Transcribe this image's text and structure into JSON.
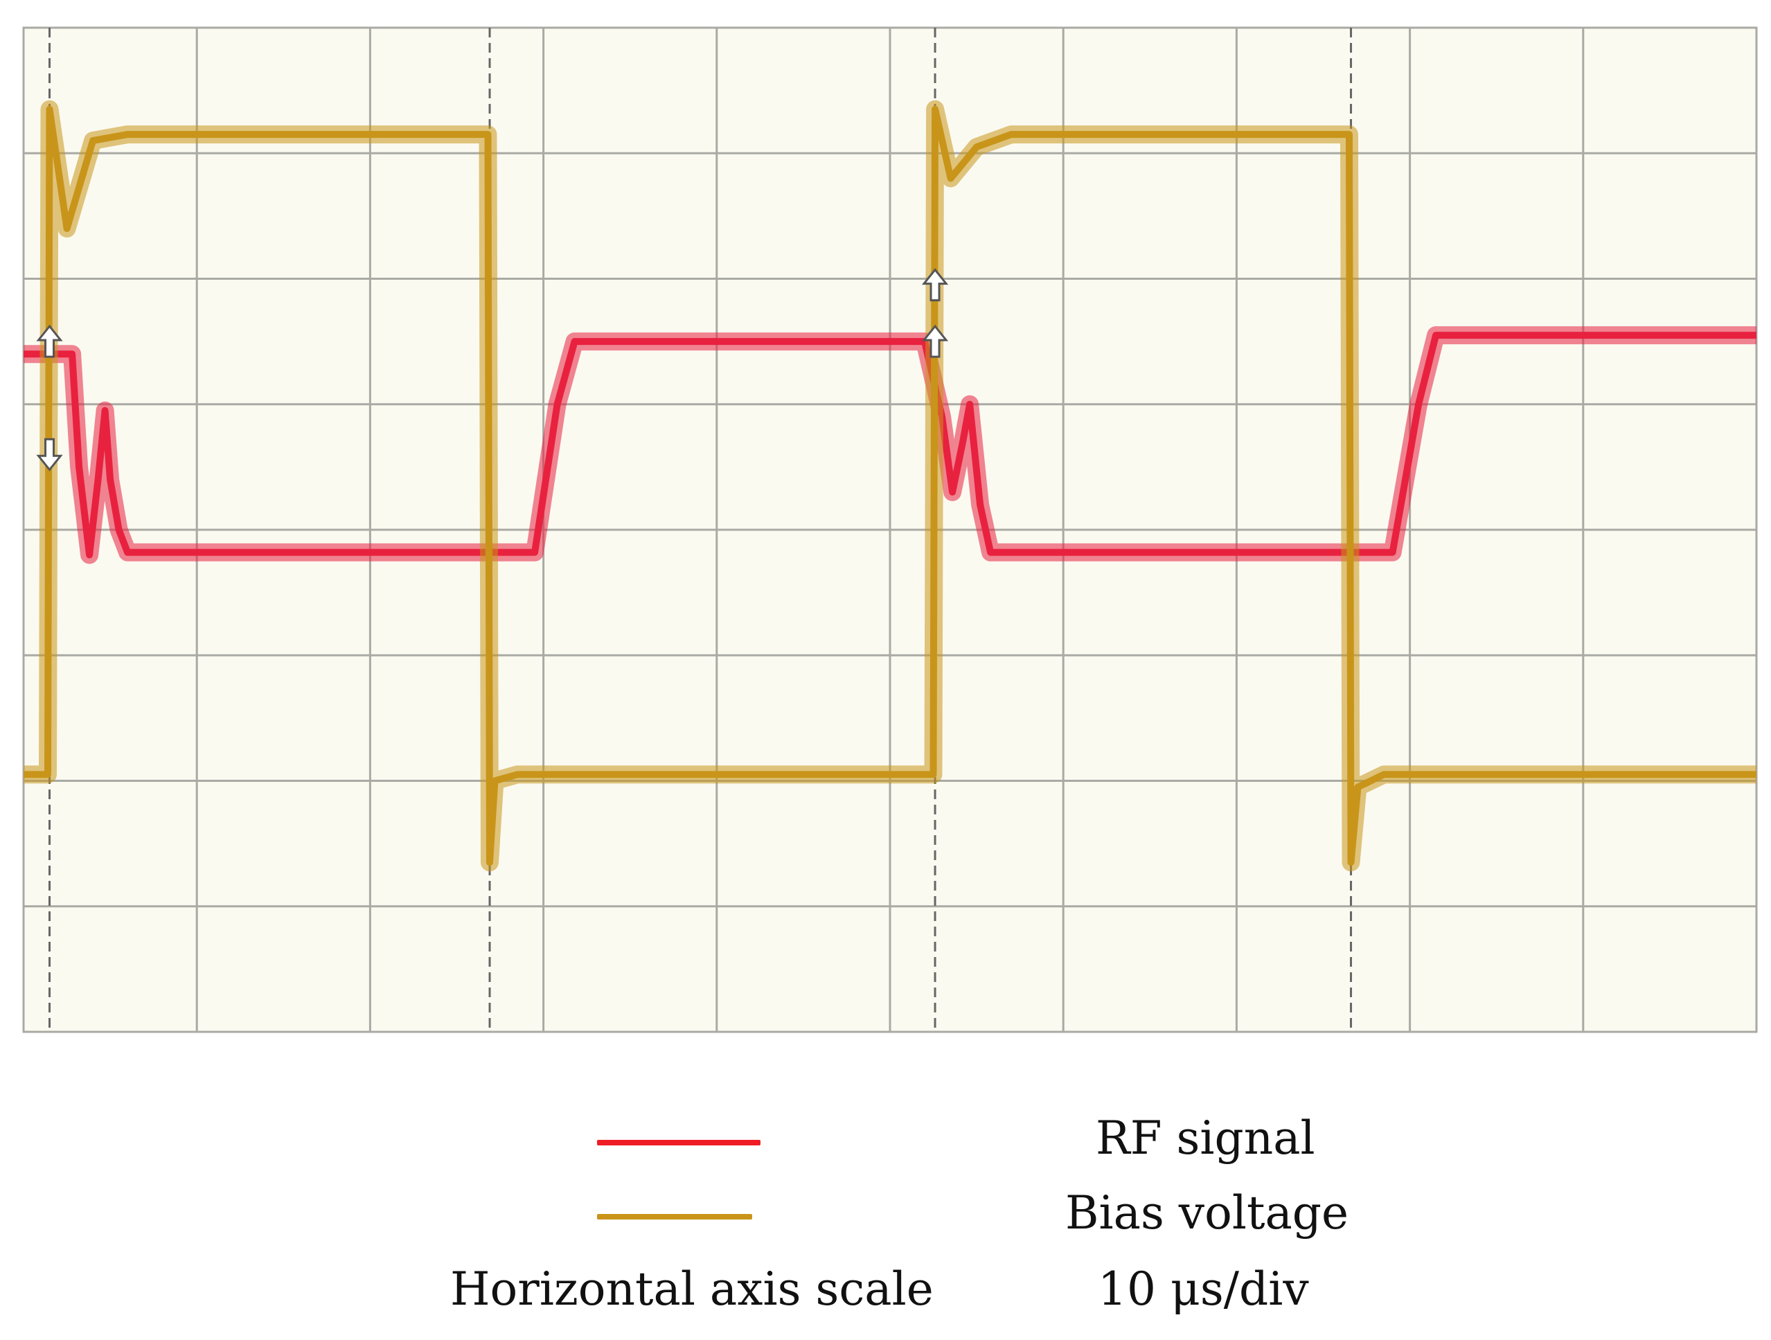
{
  "chart_data": {
    "type": "line",
    "grid": true,
    "x_divisions": 10,
    "y_divisions": 8,
    "x_unit": "div",
    "y_unit": "div",
    "series": [
      {
        "name": "RF signal",
        "color": "#e8213f",
        "points": [
          [
            0,
            5.4
          ],
          [
            0.28,
            5.4
          ],
          [
            0.32,
            4.5
          ],
          [
            0.38,
            3.8
          ],
          [
            0.43,
            4.4
          ],
          [
            0.47,
            4.95
          ],
          [
            0.5,
            4.4
          ],
          [
            0.55,
            4.0
          ],
          [
            0.6,
            3.82
          ],
          [
            2.95,
            3.82
          ],
          [
            3.08,
            5.0
          ],
          [
            3.18,
            5.5
          ],
          [
            5.2,
            5.5
          ],
          [
            5.3,
            4.9
          ],
          [
            5.36,
            4.3
          ],
          [
            5.42,
            4.7
          ],
          [
            5.46,
            5.0
          ],
          [
            5.52,
            4.2
          ],
          [
            5.58,
            3.82
          ],
          [
            7.9,
            3.82
          ],
          [
            8.05,
            5.0
          ],
          [
            8.15,
            5.55
          ],
          [
            10,
            5.55
          ]
        ]
      },
      {
        "name": "Bias voltage",
        "color": "#c8951a",
        "points": [
          [
            0,
            2.05
          ],
          [
            0.14,
            2.05
          ],
          [
            0.15,
            7.35
          ],
          [
            0.25,
            6.4
          ],
          [
            0.4,
            7.1
          ],
          [
            0.6,
            7.15
          ],
          [
            2.68,
            7.15
          ],
          [
            2.69,
            1.35
          ],
          [
            2.72,
            2.0
          ],
          [
            2.85,
            2.05
          ],
          [
            5.25,
            2.05
          ],
          [
            5.26,
            7.35
          ],
          [
            5.35,
            6.8
          ],
          [
            5.5,
            7.05
          ],
          [
            5.7,
            7.15
          ],
          [
            7.65,
            7.15
          ],
          [
            7.66,
            1.35
          ],
          [
            7.7,
            1.95
          ],
          [
            7.85,
            2.05
          ],
          [
            10,
            2.05
          ]
        ]
      }
    ]
  },
  "legend": {
    "rf_label": "RF signal",
    "bias_label": "Bias voltage",
    "scale_label": "Horizontal axis scale",
    "scale_value": "10 μs/div",
    "rf_color": "#ee1c24",
    "bias_color": "#c99418"
  },
  "colors": {
    "screen_bg": "#fbfaf1",
    "grid": "#a9aaa4",
    "cursor": "#666666"
  }
}
